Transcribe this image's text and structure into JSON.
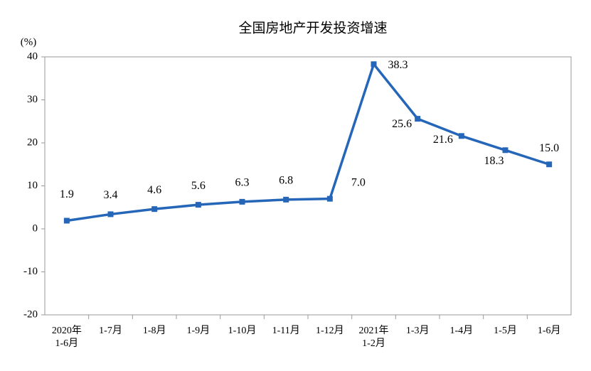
{
  "chart_data": {
    "type": "line",
    "title": "全国房地产开发投资增速",
    "y_unit_label": "(%)",
    "categories": [
      "2020年\n1-6月",
      "1-7月",
      "1-8月",
      "1-9月",
      "1-10月",
      "1-11月",
      "1-12月",
      "2021年\n1-2月",
      "1-3月",
      "1-4月",
      "1-5月",
      "1-6月"
    ],
    "series": [
      {
        "name": "增速",
        "color": "#2566b8",
        "values": [
          1.9,
          3.4,
          4.6,
          5.6,
          6.3,
          6.8,
          7.0,
          38.3,
          25.6,
          21.6,
          18.3,
          15.0
        ],
        "value_labels": [
          "1.9",
          "3.4",
          "4.6",
          "5.6",
          "6.3",
          "6.8",
          "7.0",
          "38.3",
          "25.6",
          "21.6",
          "18.3",
          "15.0"
        ]
      }
    ],
    "ylim": [
      -20,
      40
    ],
    "yticks": [
      -20,
      -10,
      0,
      10,
      20,
      30,
      40
    ],
    "grid": false
  }
}
